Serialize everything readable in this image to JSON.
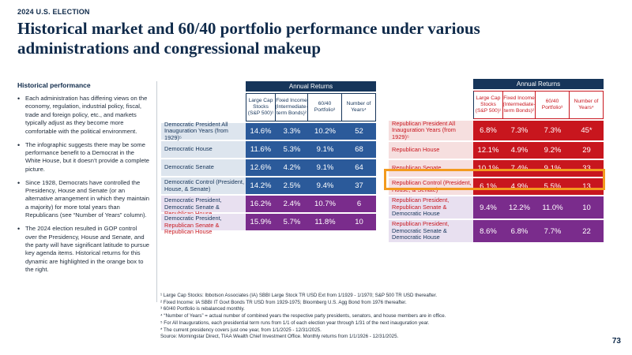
{
  "header": {
    "eyebrow": "2024 U.S. ELECTION",
    "title": "Historical market and 60/40 portfolio performance under various administrations and congressional makeup"
  },
  "sidebar": {
    "heading": "Historical performance",
    "bullets": [
      "Each administration has differing views on the economy, regulation, industrial policy, fiscal, trade and foreign policy, etc., and markets typically adjust as they become more comfortable with the political environment.",
      "The infographic suggests there may be some performance benefit to a Democrat in the White House, but it doesn’t provide a complete picture.",
      "Since 1928, Democrats have controlled the Presidency, House and Senate (or an alternative arrangement in which they maintain a majority) for more total years than Republicans (see “Number of Years” column).",
      "The 2024 election resulted in GOP control over the Presidency, House and Senate, and the party will have significant latitude to pursue key agenda items. Historical returns for this dynamic are highlighted in the orange box to the right."
    ]
  },
  "dem_table": {
    "band": "Annual Returns",
    "columns": [
      "Large Cap Stocks (S&P 500)¹",
      "Fixed Income (Intermediate-term Bonds)²",
      "60/40 Portfolio³",
      "Number of Years⁴"
    ],
    "rows": [
      {
        "label": "Democratic President All Inauguration Years (from 1929)⁵",
        "values": [
          "14.6%",
          "3.3%",
          "10.2%",
          "52"
        ]
      },
      {
        "label": "Democratic House",
        "values": [
          "11.6%",
          "5.3%",
          "9.1%",
          "68"
        ]
      },
      {
        "label": "Democratic Senate",
        "values": [
          "12.6%",
          "4.2%",
          "9.1%",
          "64"
        ]
      },
      {
        "label": "Democratic Control (President, House, & Senate)",
        "values": [
          "14.2%",
          "2.5%",
          "9.4%",
          "37"
        ]
      },
      {
        "label_a": "Democratic President, Democratic Senate &",
        "label_b": "Republican House",
        "values": [
          "16.2%",
          "2.4%",
          "10.7%",
          "6"
        ]
      },
      {
        "label_a": "Democratic President,",
        "label_b": "Republican Senate & Republican House",
        "values": [
          "15.9%",
          "5.7%",
          "11.8%",
          "10"
        ]
      }
    ]
  },
  "rep_table": {
    "band": "Annual Returns",
    "columns": [
      "Large Cap Stocks (S&P 500)¹",
      "Fixed Income (Intermediate-term Bonds)²",
      "60/40 Portfolio³",
      "Number of Years⁴"
    ],
    "rows": [
      {
        "label": "Republican President All Inauguration Years (from 1929)⁵",
        "values": [
          "6.8%",
          "7.3%",
          "7.3%",
          "45*"
        ]
      },
      {
        "label": "Republican House",
        "values": [
          "12.1%",
          "4.9%",
          "9.2%",
          "29"
        ]
      },
      {
        "label": "Republican Senate",
        "values": [
          "10.1%",
          "7.4%",
          "9.1%",
          "33"
        ]
      },
      {
        "label": "Republican Control (President, House, & Senate)",
        "values": [
          "6.1%",
          "4.9%",
          "5.5%",
          "13"
        ]
      },
      {
        "label_a": "Republican President, Republican Senate &",
        "label_b": "Democratic House",
        "values": [
          "9.4%",
          "12.2%",
          "11.0%",
          "10"
        ]
      },
      {
        "label_a": "Republican President,",
        "label_b": "Democratic Senate & Democratic House",
        "values": [
          "8.6%",
          "6.8%",
          "7.7%",
          "22"
        ]
      }
    ]
  },
  "footnotes": [
    "¹ Large Cap Stocks: Ibbotson Associates (IA) SBBI Large Stock TR USD Ext from 1/1929 - 1/1970; S&P 500 TR USD thereafter.",
    "² Fixed Income: IA SBBI IT Govt Bonds TR USD from 1929-1975; Bloomberg U.S. Agg Bond from 1976 thereafter.",
    "³ 60/40 Portfolio is rebalanced monthly.",
    "⁴ “Number of Years” = actual number of combined years the respective party presidents, senators, and house members are in office.",
    "⁵ For All Inaugurations, each presidential term runs from 1/1 of each election year through 1/31 of the next inauguration year.",
    "* The current presidency covers just one year, from 1/1/2025 - 12/31/2025.",
    "Source: Morningstar Direct, TIAA Wealth Chief Investment Office. Monthly returns from 1/1/1926 - 12/31/2025."
  ],
  "page_number": "73"
}
